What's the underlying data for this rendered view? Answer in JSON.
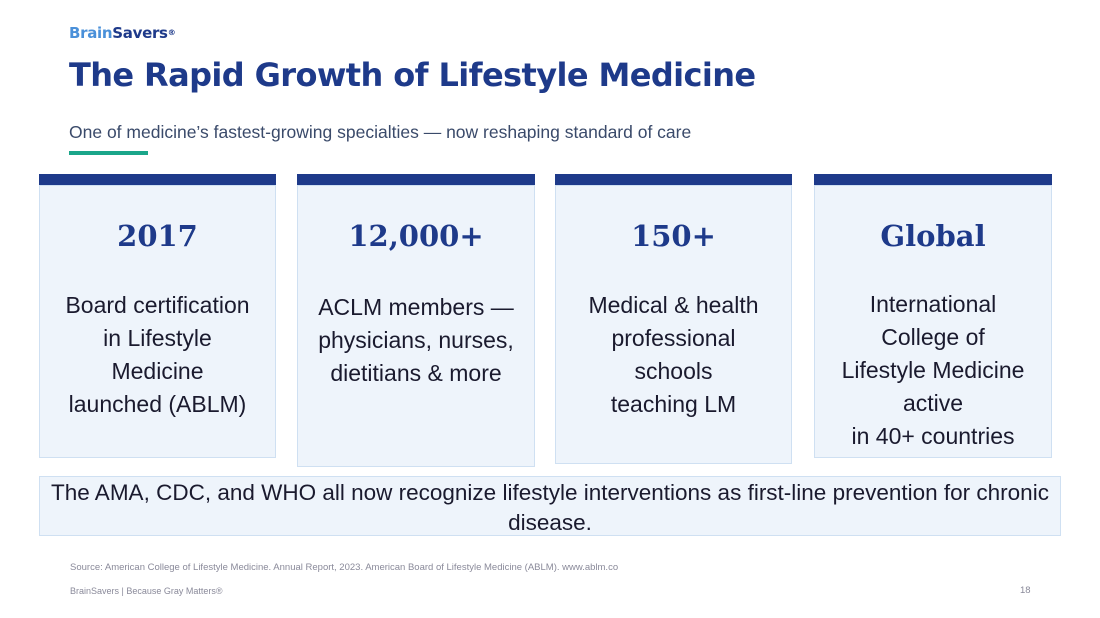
{
  "brand": {
    "part1": "Brain",
    "part2": "Savers",
    "mark": "®"
  },
  "slide": {
    "title": "The Rapid Growth of Lifestyle Medicine",
    "subtitle": "One of medicine’s fastest-growing specialties — now reshaping standard of care"
  },
  "colors": {
    "navy": "#1e3a8a",
    "accent_teal": "#1aa68a",
    "card_bg": "#eef4fb",
    "brand_light_blue": "#4a90d9"
  },
  "cards": [
    {
      "stat": "2017",
      "description": "Board certification\nin Lifestyle\nMedicine\nlaunched (ABLM)"
    },
    {
      "stat": "12,000+",
      "description": "ACLM members —\nphysicians, nurses,\ndietitians & more"
    },
    {
      "stat": "150+",
      "description": "Medical & health\nprofessional\nschools\nteaching LM"
    },
    {
      "stat": "Global",
      "description": "International\nCollege of\nLifestyle Medicine\nactive\nin 40+ countries"
    }
  ],
  "callout": "The AMA, CDC, and WHO all now recognize lifestyle interventions as first-line prevention for chronic disease.",
  "source": "Source: American College of Lifestyle Medicine. Annual Report, 2023. American Board of Lifestyle Medicine (ABLM). www.ablm.co",
  "footer": "BrainSavers  |  Because Gray Matters®",
  "page_number": "18"
}
